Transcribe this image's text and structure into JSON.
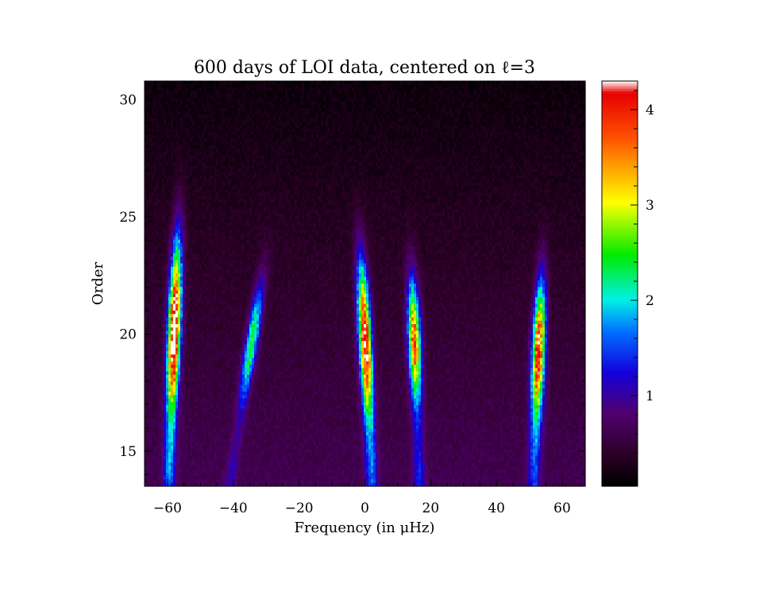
{
  "chart_data": {
    "type": "heatmap",
    "title": "600 days of LOI data, centered on ℓ=3",
    "xlabel": "Frequency (in μHz)",
    "ylabel": "Order",
    "xlim": [
      -67,
      67
    ],
    "ylim": [
      13.5,
      30.8
    ],
    "x_ticks": [
      -60,
      -40,
      -20,
      0,
      20,
      40,
      60
    ],
    "y_ticks": [
      15,
      20,
      25,
      30
    ],
    "colorbar": {
      "range": [
        0.05,
        4.3
      ],
      "ticks": [
        1,
        2,
        3,
        4
      ],
      "colormap": "rainbow"
    },
    "ridges": [
      {
        "x_at_order20": -58,
        "slope": 0.25,
        "peak": 4.3,
        "order_min": 16,
        "order_max": 26
      },
      {
        "x_at_order20": -34,
        "slope": 1.1,
        "peak": 2.0,
        "order_min": 17,
        "order_max": 24
      },
      {
        "x_at_order20": 0,
        "slope": -0.35,
        "peak": 3.9,
        "order_min": 16,
        "order_max": 25
      },
      {
        "x_at_order20": 15,
        "slope": -0.25,
        "peak": 3.3,
        "order_min": 17,
        "order_max": 24
      },
      {
        "x_at_order20": 53,
        "slope": 0.25,
        "peak": 3.7,
        "order_min": 16,
        "order_max": 24
      }
    ]
  }
}
